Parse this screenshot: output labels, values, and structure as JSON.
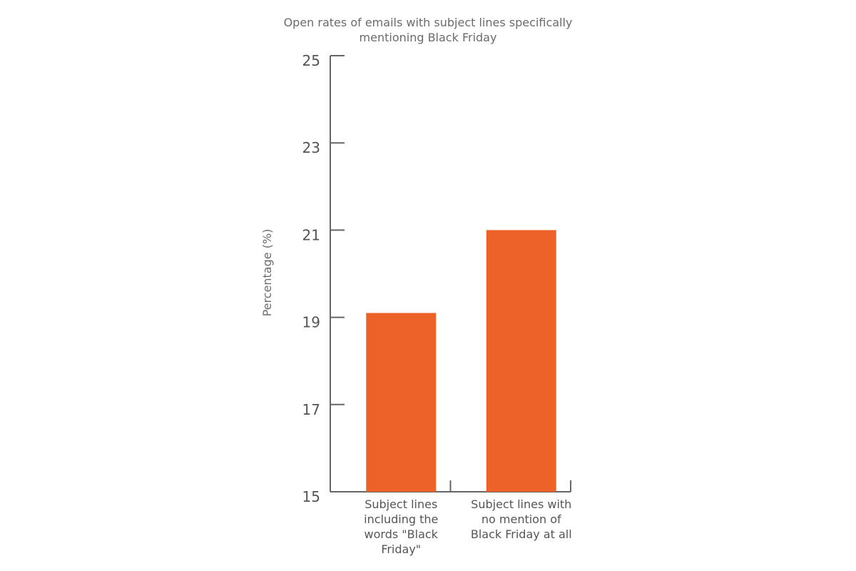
{
  "chart_data": {
    "type": "bar",
    "title": "Open rates of emails with subject lines specifically mentioning Black Friday",
    "title_lines": [
      "Open rates of emails with subject lines specifically",
      "mentioning Black Friday"
    ],
    "ylabel": "Percentage (%)",
    "xlabel": "",
    "ylim": [
      15,
      25
    ],
    "yticks": [
      15,
      17,
      19,
      21,
      23,
      25
    ],
    "categories": [
      "Subject lines including the words \"Black Friday\"",
      "Subject lines with no mention of Black Friday at all"
    ],
    "category_lines": [
      [
        "Subject lines",
        "including the",
        "words \"Black",
        "Friday\""
      ],
      [
        "Subject lines with",
        "no mention of",
        "Black Friday at all"
      ]
    ],
    "values": [
      19.1,
      21.0
    ],
    "bar_color": "#ec6228",
    "grid": false
  }
}
